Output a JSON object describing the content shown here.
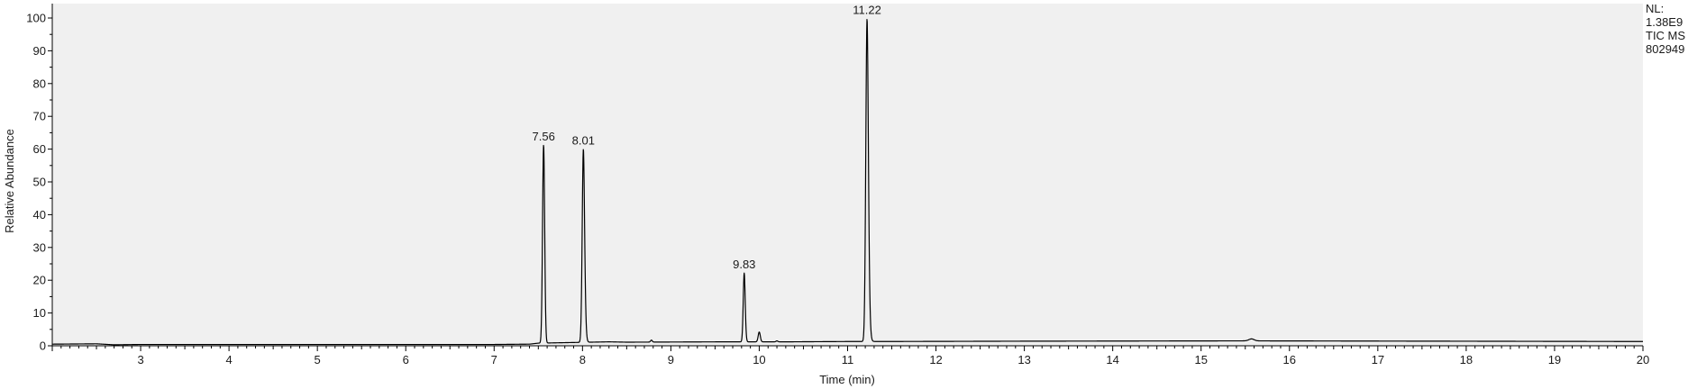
{
  "header_info": {
    "nl_label": "NL:",
    "nl_value": "1.38E9",
    "scan_filter": "TIC  MS",
    "sample_name": "802949"
  },
  "chart_data": {
    "type": "line",
    "xlabel": "Time (min)",
    "ylabel": "Relative Abundance",
    "xlim": [
      2.0,
      20.0
    ],
    "ylim": [
      0,
      100
    ],
    "xticks": [
      3,
      4,
      5,
      6,
      7,
      8,
      9,
      10,
      11,
      12,
      13,
      14,
      15,
      16,
      17,
      18,
      19,
      20
    ],
    "yticks": [
      0,
      10,
      20,
      30,
      40,
      50,
      60,
      70,
      80,
      90,
      100
    ],
    "grid": false,
    "colors": {
      "trace": "#000000",
      "plot_background": "#f0f0f0",
      "axis": "#000000"
    },
    "peak_labels": [
      "7.56",
      "8.01",
      "9.83",
      "11.22"
    ],
    "baseline": [
      [
        2.0,
        0.5
      ],
      [
        2.5,
        0.6
      ],
      [
        2.7,
        0.3
      ],
      [
        3.0,
        0.4
      ],
      [
        7.0,
        0.4
      ],
      [
        7.4,
        0.5
      ],
      [
        7.5,
        0.8
      ],
      [
        8.3,
        1.2
      ],
      [
        8.5,
        1.1
      ],
      [
        9.6,
        1.2
      ],
      [
        10.3,
        1.2
      ],
      [
        11.0,
        1.3
      ],
      [
        11.4,
        1.3
      ],
      [
        13.0,
        1.4
      ],
      [
        15.5,
        1.5
      ],
      [
        20.0,
        1.3
      ]
    ],
    "peaks": [
      {
        "rt": 7.56,
        "height": 60.5,
        "width": 0.012,
        "tail": 0.0
      },
      {
        "rt": 8.01,
        "height": 59.0,
        "width": 0.013,
        "tail": 0.06
      },
      {
        "rt": 8.78,
        "height": 0.6,
        "width": 0.01,
        "tail": 0.0
      },
      {
        "rt": 9.83,
        "height": 21.0,
        "width": 0.011,
        "tail": 0.02
      },
      {
        "rt": 10.0,
        "height": 3.0,
        "width": 0.012,
        "tail": 0.0
      },
      {
        "rt": 10.2,
        "height": 0.3,
        "width": 0.01,
        "tail": 0.0
      },
      {
        "rt": 11.22,
        "height": 98.5,
        "width": 0.014,
        "tail": 0.07
      },
      {
        "rt": 15.57,
        "height": 0.6,
        "width": 0.03,
        "tail": 0.0
      }
    ]
  }
}
